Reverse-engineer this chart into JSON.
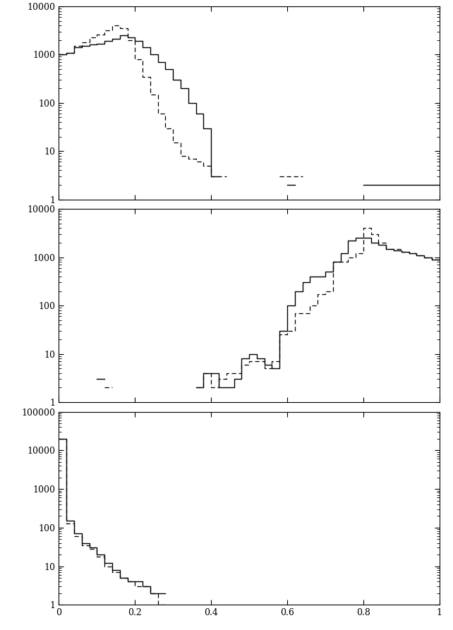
{
  "plot1": {
    "ylim": [
      1,
      10000
    ],
    "xlim": [
      0,
      1
    ],
    "solid_bins": [
      0.0,
      0.02,
      0.04,
      0.06,
      0.08,
      0.1,
      0.12,
      0.14,
      0.16,
      0.18,
      0.2,
      0.22,
      0.24,
      0.26,
      0.28,
      0.3,
      0.32,
      0.34,
      0.36,
      0.38,
      0.4,
      0.42,
      0.58,
      0.6,
      0.62,
      0.8,
      0.82,
      0.84,
      0.86,
      0.88,
      0.9,
      0.92,
      0.94,
      0.96,
      0.98,
      1.0
    ],
    "solid_vals": [
      1000,
      1100,
      1400,
      1500,
      1600,
      1700,
      1900,
      2100,
      2500,
      2300,
      1900,
      1400,
      1000,
      700,
      500,
      300,
      200,
      100,
      60,
      30,
      3,
      0,
      0,
      2,
      0,
      2,
      2,
      2,
      2,
      2,
      2,
      2,
      2,
      2,
      2
    ],
    "dashed_bins": [
      0.0,
      0.02,
      0.04,
      0.06,
      0.08,
      0.1,
      0.12,
      0.14,
      0.16,
      0.18,
      0.2,
      0.22,
      0.24,
      0.26,
      0.28,
      0.3,
      0.32,
      0.34,
      0.36,
      0.38,
      0.4,
      0.42,
      0.44,
      0.58,
      0.6,
      0.62,
      0.64,
      1.0
    ],
    "dashed_vals": [
      1000,
      1100,
      1500,
      1800,
      2300,
      2600,
      3200,
      4000,
      3500,
      2000,
      800,
      350,
      150,
      60,
      30,
      15,
      8,
      7,
      6,
      5,
      3,
      3,
      0,
      3,
      3,
      3,
      0
    ]
  },
  "plot2": {
    "ylim": [
      1,
      10000
    ],
    "xlim": [
      0,
      1
    ],
    "solid_bins": [
      0.0,
      0.1,
      0.12,
      0.14,
      0.16,
      0.18,
      0.36,
      0.38,
      0.4,
      0.42,
      0.44,
      0.46,
      0.48,
      0.5,
      0.52,
      0.54,
      0.56,
      0.58,
      0.6,
      0.62,
      0.64,
      0.66,
      0.68,
      0.7,
      0.72,
      0.74,
      0.76,
      0.78,
      0.8,
      0.82,
      0.84,
      0.86,
      0.88,
      0.9,
      0.92,
      0.94,
      0.96,
      0.98,
      1.0
    ],
    "solid_vals": [
      0,
      3,
      0,
      0,
      0,
      0,
      2,
      4,
      4,
      2,
      2,
      3,
      8,
      10,
      8,
      6,
      5,
      30,
      100,
      200,
      300,
      400,
      400,
      500,
      800,
      1200,
      2200,
      2500,
      2500,
      2000,
      1800,
      1500,
      1400,
      1300,
      1200,
      1100,
      1000,
      900
    ],
    "dashed_bins": [
      0.0,
      0.1,
      0.12,
      0.14,
      0.16,
      0.18,
      0.36,
      0.38,
      0.4,
      0.42,
      0.44,
      0.46,
      0.48,
      0.5,
      0.52,
      0.54,
      0.56,
      0.58,
      0.6,
      0.62,
      0.64,
      0.66,
      0.68,
      0.7,
      0.72,
      0.74,
      0.76,
      0.78,
      0.8,
      0.82,
      0.84,
      0.86,
      0.88,
      0.9,
      0.92,
      0.94,
      0.96,
      0.98,
      1.0
    ],
    "dashed_vals": [
      0,
      0,
      2,
      0,
      0,
      0,
      2,
      4,
      2,
      3,
      4,
      4,
      6,
      7,
      7,
      5,
      7,
      25,
      30,
      70,
      70,
      100,
      170,
      200,
      800,
      800,
      1000,
      1200,
      4000,
      3000,
      2000,
      1500,
      1500,
      1300,
      1200,
      1100,
      1000,
      900
    ]
  },
  "plot3": {
    "ylim": [
      1,
      100000
    ],
    "xlim": [
      0,
      1
    ],
    "solid_bins": [
      0.0,
      0.02,
      0.04,
      0.06,
      0.08,
      0.1,
      0.12,
      0.14,
      0.16,
      0.18,
      0.2,
      0.22,
      0.24,
      0.26,
      0.28,
      1.0
    ],
    "solid_vals": [
      20000,
      150,
      70,
      40,
      30,
      20,
      12,
      8,
      5,
      4,
      4,
      3,
      2,
      2,
      0
    ],
    "dashed_bins": [
      0.0,
      0.02,
      0.04,
      0.06,
      0.08,
      0.1,
      0.12,
      0.14,
      0.16,
      0.18,
      0.2,
      0.22,
      0.24,
      0.26,
      0.28,
      1.0
    ],
    "dashed_vals": [
      20000,
      130,
      60,
      35,
      28,
      18,
      10,
      7,
      5,
      4,
      3,
      3,
      2,
      1,
      0
    ]
  },
  "bg_color": "#ffffff"
}
